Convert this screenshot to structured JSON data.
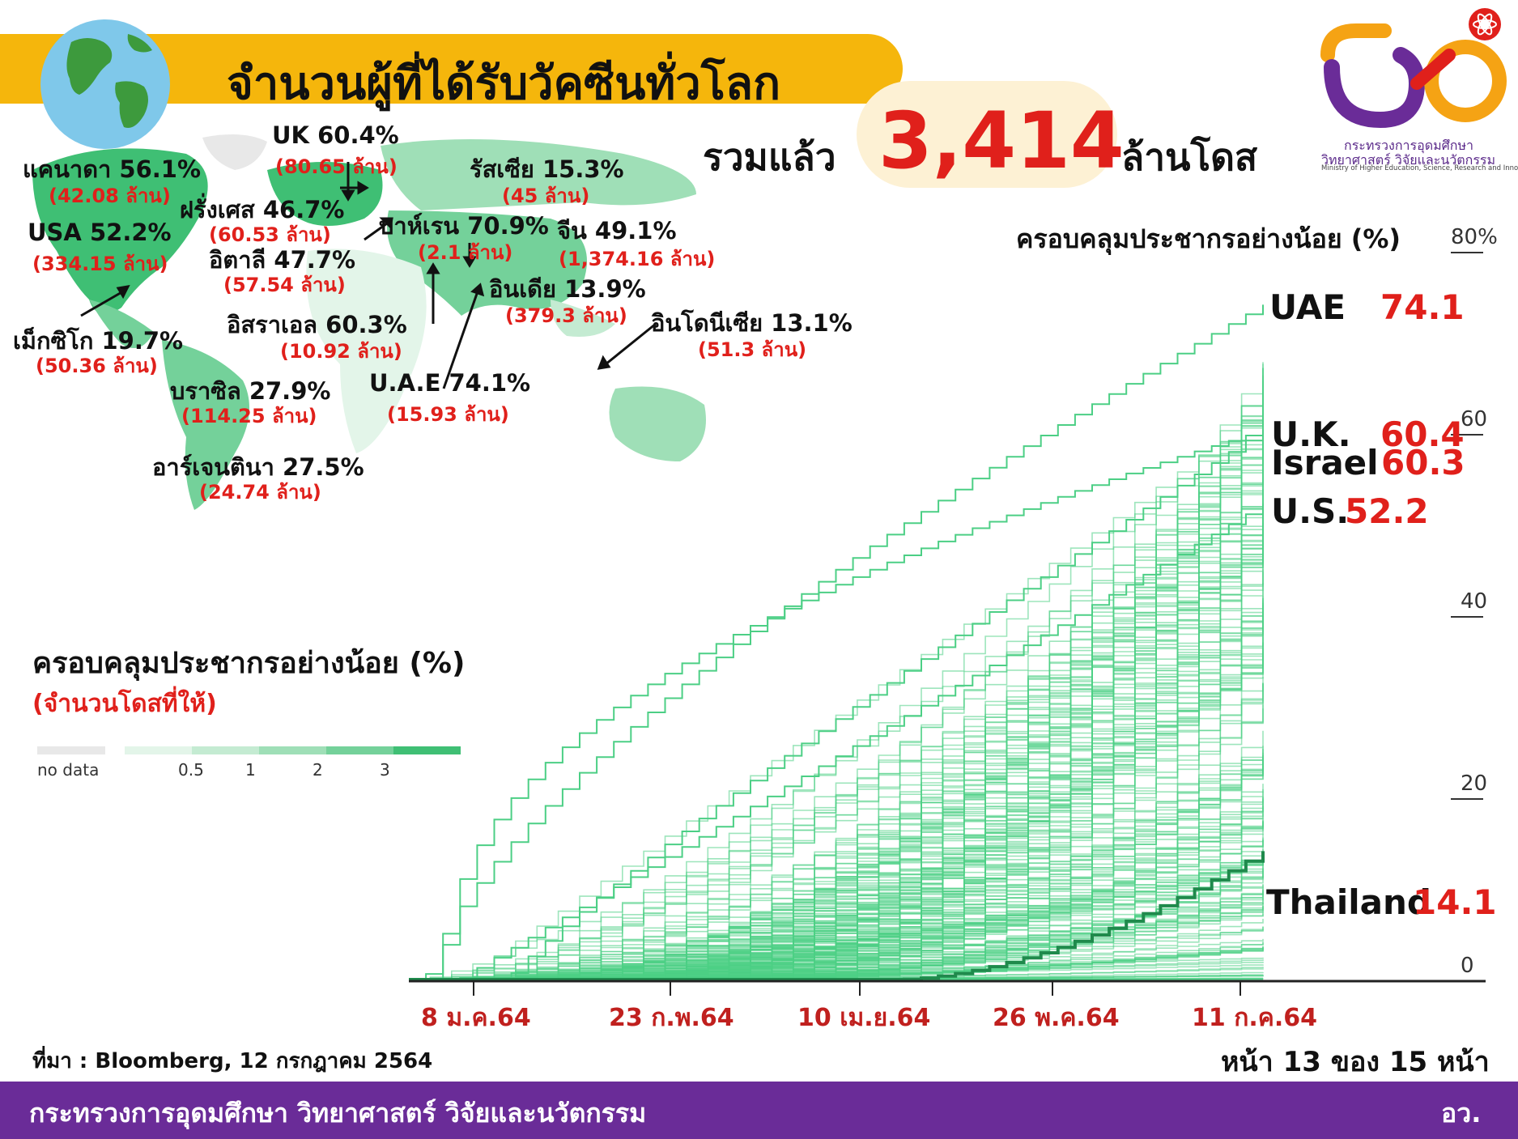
{
  "header": {
    "title": "จำนวนผู้ที่ได้รับวัคซีนทั่วโลก",
    "total_prefix": "รวมแล้ว",
    "total_value": "3,414",
    "total_suffix": "ล้านโดส"
  },
  "logo": {
    "line1": "กระทรวงการอุดมศึกษา",
    "line2": "วิทยาศาสตร์ วิจัยและนวัตกรรม",
    "line3": "Ministry of Higher Education, Science, Research and Innovation"
  },
  "map_labels": [
    {
      "name": "UK 60.4%",
      "doses": "(80.65 ล้าน)"
    },
    {
      "name": "แคนาดา 56.1%",
      "doses": "(42.08 ล้าน)"
    },
    {
      "name": "รัสเซีย 15.3%",
      "doses": "(45 ล้าน)"
    },
    {
      "name": "ฝรั่งเศส 46.7%",
      "doses": "(60.53 ล้าน)"
    },
    {
      "name": "บาห์เรน 70.9%",
      "doses": "(2.1 ล้าน)"
    },
    {
      "name": "จีน 49.1%",
      "doses": "(1,374.16 ล้าน)"
    },
    {
      "name": "USA 52.2%",
      "doses": "(334.15 ล้าน)"
    },
    {
      "name": "อิตาลี 47.7%",
      "doses": "(57.54 ล้าน)"
    },
    {
      "name": "อินเดีย 13.9%",
      "doses": "(379.3 ล้าน)"
    },
    {
      "name": "อิสราเอล 60.3%",
      "doses": "(10.92 ล้าน)"
    },
    {
      "name": "อินโดนีเซีย 13.1%",
      "doses": "(51.3 ล้าน)"
    },
    {
      "name": "เม็กซิโก 19.7%",
      "doses": "(50.36 ล้าน)"
    },
    {
      "name": "บราซิล 27.9%",
      "doses": "(114.25 ล้าน)"
    },
    {
      "name": "U.A.E 74.1%",
      "doses": "(15.93 ล้าน)"
    },
    {
      "name": "อาร์เจนตินา 27.5%",
      "doses": "(24.74 ล้าน)"
    }
  ],
  "legend": {
    "title": "ครอบคลุมประชากรอย่างน้อย (%)",
    "subtitle": "(จำนวนโดสที่ให้)",
    "no_data": "no data",
    "ticks": [
      "0.5",
      "1",
      "2",
      "3"
    ],
    "colors": [
      "#e8e8e8",
      "#e3f5e9",
      "#c4ebd2",
      "#9fdfb7",
      "#74d19a",
      "#3fbf74"
    ]
  },
  "source": "ที่มา : Bloomberg, 12 กรกฎาคม 2564",
  "page_info": "หน้า 13 ของ 15 หน้า",
  "footer": {
    "left": "กระทรวงการอุดมศึกษา วิทยาศาสตร์ วิจัยและนวัตกรรม",
    "right": "อว."
  },
  "colors": {
    "accent_yellow": "#f5b60c",
    "highlight_red": "#e0201b",
    "footer_purple": "#6a2c98",
    "line_green": "#4ccf85",
    "thailand_line": "#1f8a4c"
  },
  "chart_data": {
    "type": "line",
    "title": "ครอบคลุมประชากรอย่างน้อย (%)",
    "y_ticks": [
      "80%",
      "60",
      "40",
      "20",
      "0"
    ],
    "ylim": [
      0,
      80
    ],
    "x_ticks": [
      "8 ม.ค.64",
      "23 ก.พ.64",
      "10 เม.ย.64",
      "26 พ.ค.64",
      "11 ก.ค.64"
    ],
    "series": [
      {
        "name": "UAE",
        "label": "UAE",
        "value": "74.1",
        "final": 74.1
      },
      {
        "name": "U.K.",
        "label": "U.K.",
        "value": "60.4",
        "final": 60.4
      },
      {
        "name": "Israel",
        "label": "Israel",
        "value": "60.3",
        "final": 60.3
      },
      {
        "name": "U.S.",
        "label": "U.S.",
        "value": "52.2",
        "final": 52.2
      },
      {
        "name": "Thailand",
        "label": "Thailand",
        "value": "14.1",
        "final": 14.1
      }
    ]
  }
}
